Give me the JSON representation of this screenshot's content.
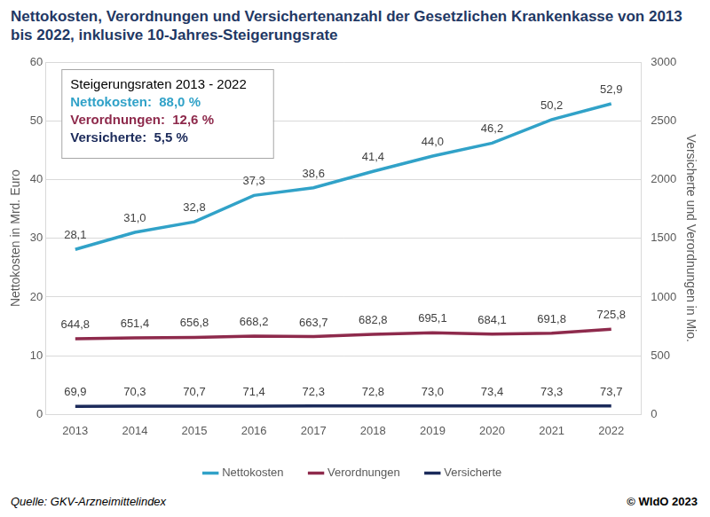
{
  "chart_data": {
    "type": "line",
    "title": "Nettokosten, Verordnungen und Versichertenanzahl der Gesetzlichen Krankenkasse von 2013 bis 2022, inklusive 10-Jahres-Steigerungsrate",
    "categories": [
      "2013",
      "2014",
      "2015",
      "2016",
      "2017",
      "2018",
      "2019",
      "2020",
      "2021",
      "2022"
    ],
    "ylabel": "Nettokosten in Mrd. Euro",
    "y2label": "Versicherte und Verordnungen in Mio.",
    "ylim": [
      0,
      60
    ],
    "yticks": [
      0,
      10,
      20,
      30,
      40,
      50,
      60
    ],
    "y2lim": [
      0,
      3000
    ],
    "y2ticks": [
      0,
      500,
      1000,
      1500,
      2000,
      2500,
      3000
    ],
    "grid": true,
    "legend": "bottom",
    "data_labels": true,
    "series": [
      {
        "name": "Nettokosten",
        "color": "#31a2c8",
        "axis": "y",
        "values": [
          28.1,
          31.0,
          32.8,
          37.3,
          38.6,
          41.4,
          44.0,
          46.2,
          50.2,
          52.9
        ],
        "value_labels": [
          "28,1",
          "31,0",
          "32,8",
          "37,3",
          "38,6",
          "41,4",
          "44,0",
          "46,2",
          "50,2",
          "52,9"
        ]
      },
      {
        "name": "Verordnungen",
        "color": "#8e2a4c",
        "axis": "y2",
        "values": [
          644.8,
          651.4,
          656.8,
          668.2,
          663.7,
          682.8,
          695.1,
          684.1,
          691.8,
          725.8
        ],
        "value_labels": [
          "644,8",
          "651,4",
          "656,8",
          "668,2",
          "663,7",
          "682,8",
          "695,1",
          "684,1",
          "691,8",
          "725,8"
        ]
      },
      {
        "name": "Versicherte",
        "color": "#1b2a5a",
        "axis": "y2",
        "values": [
          69.9,
          70.3,
          70.7,
          71.4,
          72.3,
          72.8,
          73.0,
          73.4,
          73.3,
          73.7
        ],
        "value_labels": [
          "69,9",
          "70,3",
          "70,7",
          "71,4",
          "72,3",
          "72,8",
          "73,0",
          "73,4",
          "73,3",
          "73,7"
        ]
      }
    ],
    "annotation": {
      "title": "Steigerungsraten 2013 - 2022",
      "items": [
        {
          "text": "Nettokosten:  88,0 %",
          "color": "#31a2c8"
        },
        {
          "text": "Verordnungen:  12,6 %",
          "color": "#8e2a4c"
        },
        {
          "text": "Versicherte:  5,5 %",
          "color": "#1b2a5a"
        }
      ]
    },
    "source": "Quelle: GKV-Arzneimittelindex",
    "credit": "© WIdO 2023"
  }
}
